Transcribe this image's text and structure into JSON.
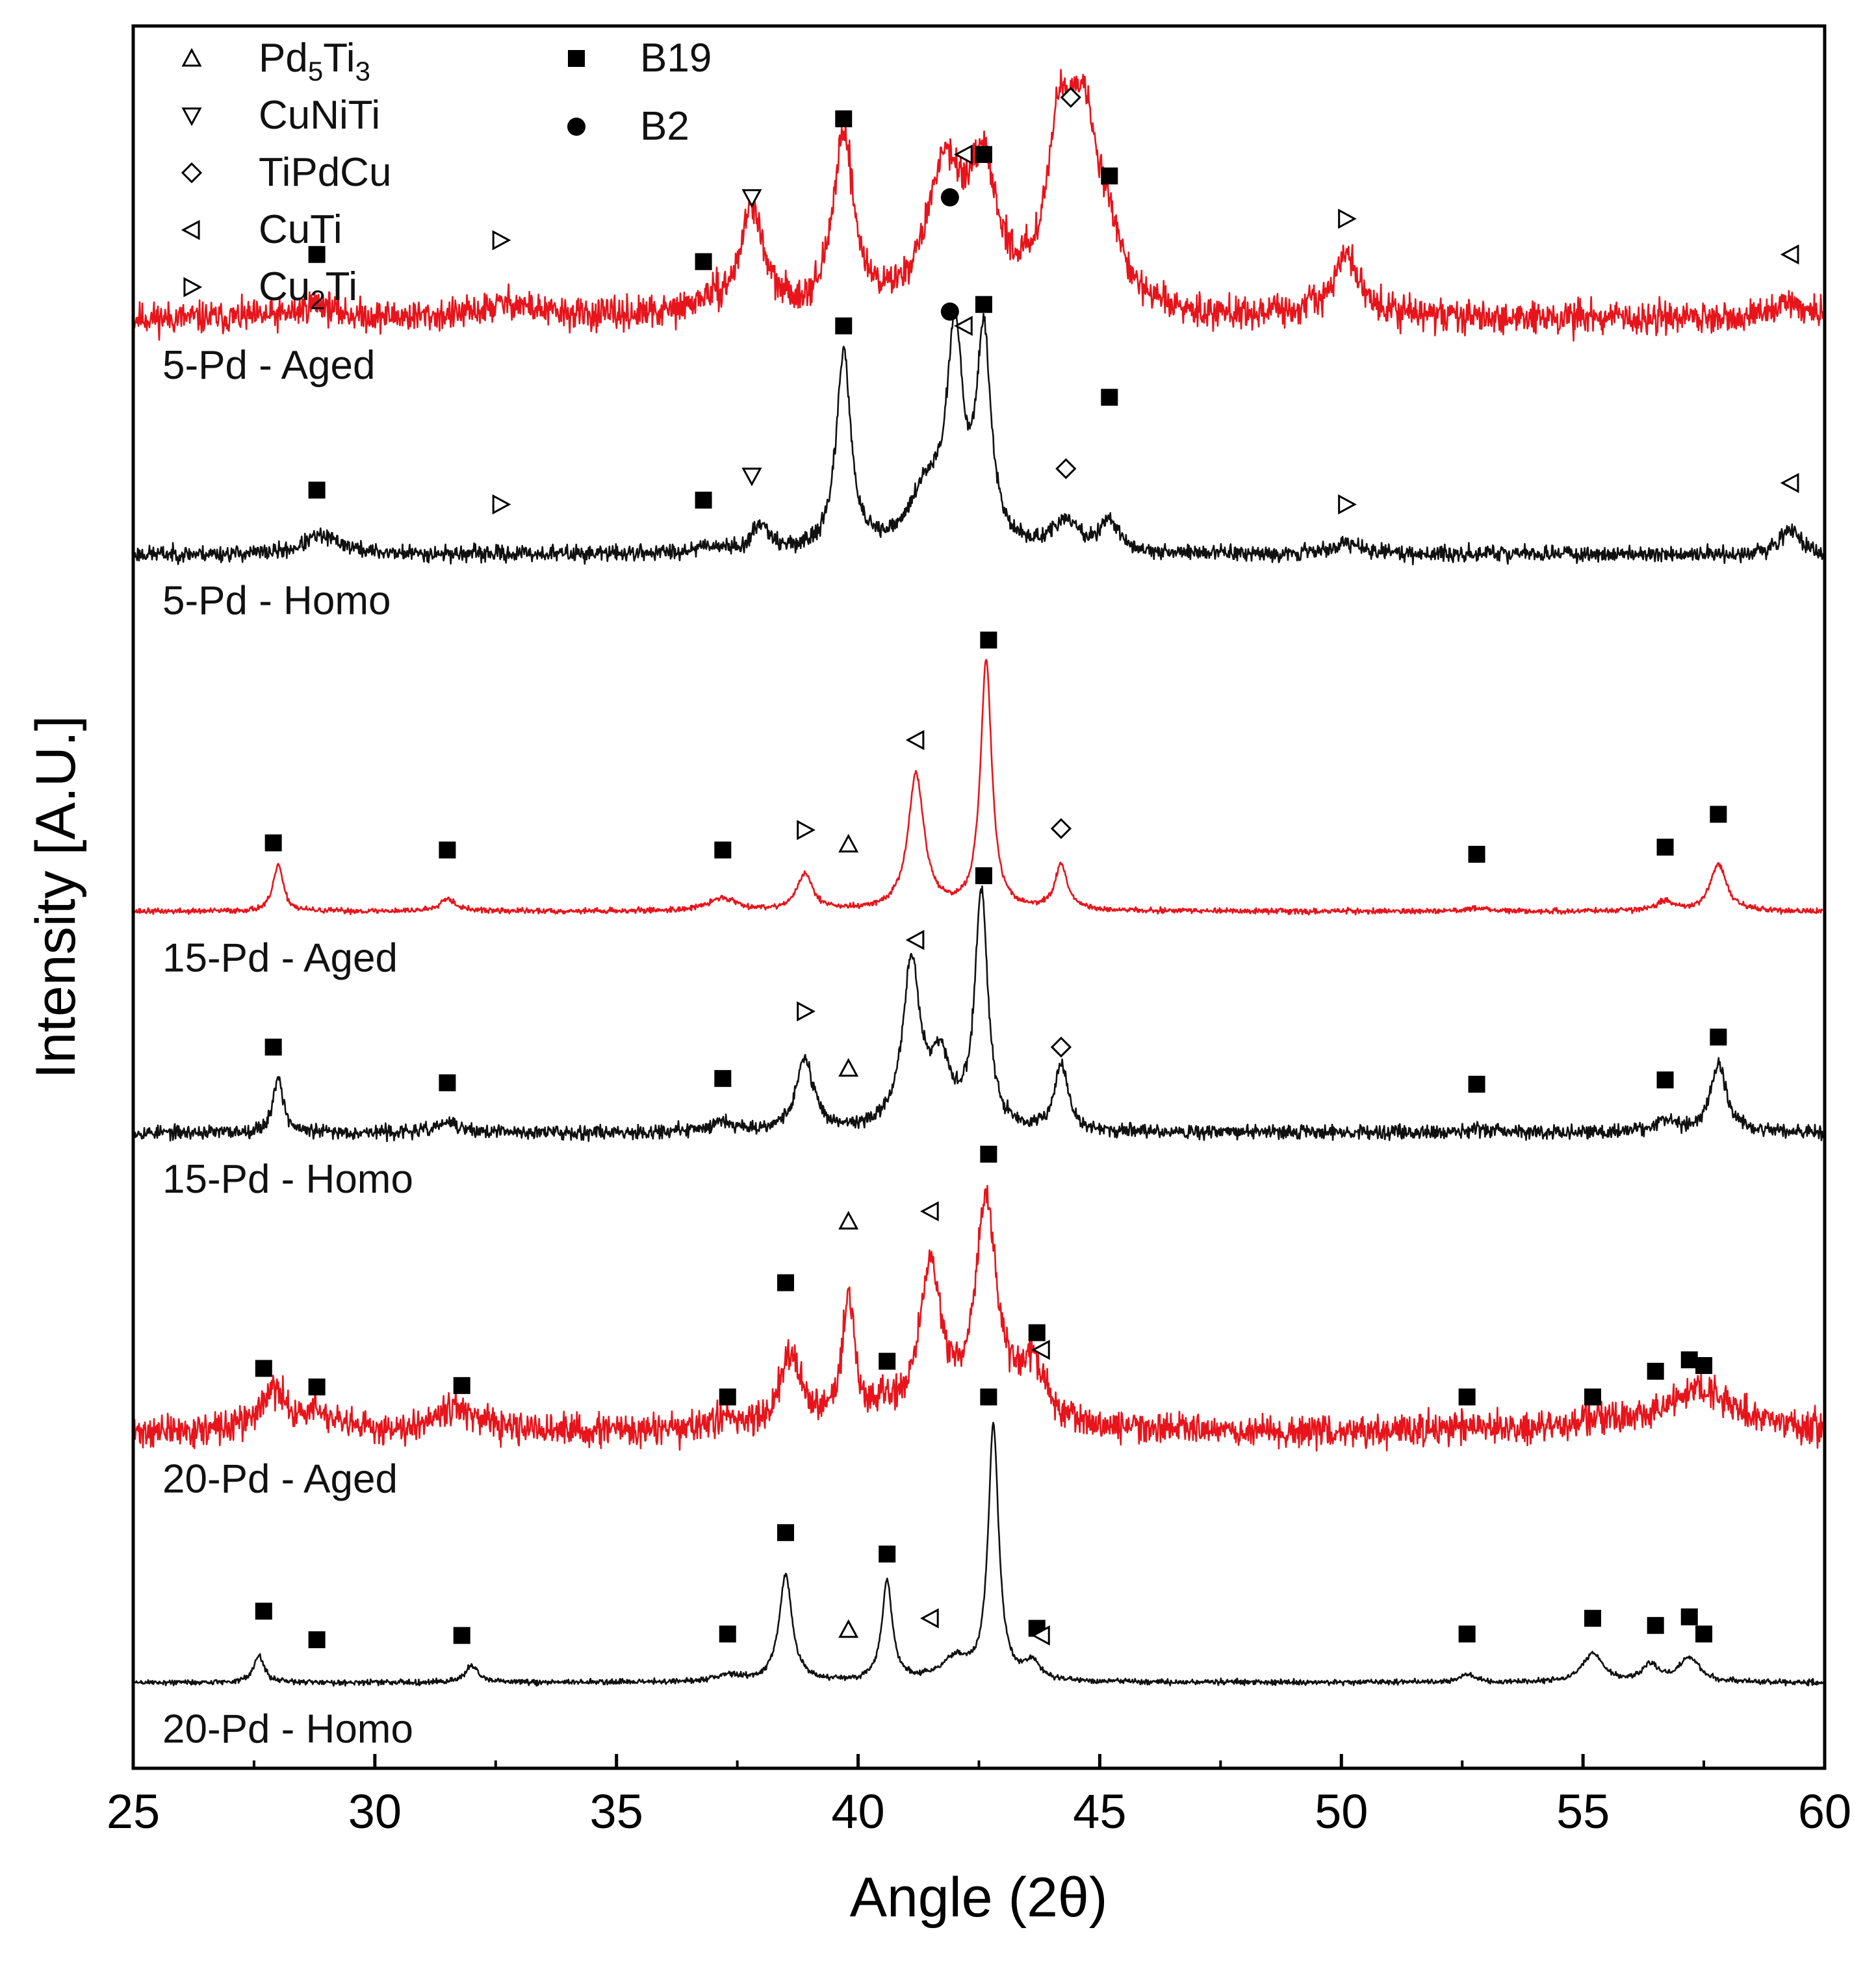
{
  "chart_data": {
    "type": "line",
    "title": "",
    "xlabel": "Angle (2θ)",
    "ylabel": "Intensity [A.U.]",
    "xlim": [
      25,
      60
    ],
    "xticks": [
      "25",
      "30",
      "35",
      "40",
      "45",
      "50",
      "55",
      "60"
    ],
    "ylim": [
      0,
      12.2
    ],
    "legend": {
      "placement": "top-left",
      "entries": [
        {
          "symbol": "triangle-up",
          "label": "Pd",
          "sub1": "5",
          "mid": "Ti",
          "sub2": "3"
        },
        {
          "symbol": "triangle-down",
          "label": "CuNiTi",
          "sub1": "",
          "mid": "",
          "sub2": ""
        },
        {
          "symbol": "diamond",
          "label": "TiPdCu",
          "sub1": "",
          "mid": "",
          "sub2": ""
        },
        {
          "symbol": "triangle-left",
          "label": "CuTi",
          "sub1": "",
          "mid": "",
          "sub2": ""
        },
        {
          "symbol": "triangle-right",
          "label": "Cu",
          "sub1": "2",
          "mid": "Ti",
          "sub2": ""
        },
        {
          "symbol": "square",
          "label": "B19",
          "sub1": "",
          "mid": "",
          "sub2": ""
        },
        {
          "symbol": "circle",
          "label": "B2",
          "sub1": "",
          "mid": "",
          "sub2": ""
        }
      ]
    },
    "series": [
      {
        "name": "5-Pd - Aged",
        "color": "#e8141b",
        "baseline": 10.15,
        "noise": 0.07,
        "seed": 11,
        "peaks": [
          [
            28.8,
            0.1,
            0.4
          ],
          [
            32.8,
            0.1,
            0.6
          ],
          [
            36.9,
            0.08,
            0.4
          ],
          [
            37.8,
            0.75,
            0.28
          ],
          [
            39.7,
            1.25,
            0.25
          ],
          [
            41.8,
            1.0,
            0.45
          ],
          [
            42.6,
            0.85,
            0.35
          ],
          [
            44.2,
            1.2,
            0.35
          ],
          [
            44.7,
            1.05,
            0.35
          ],
          [
            45.2,
            0.35,
            0.3
          ],
          [
            50.1,
            0.42,
            0.35
          ],
          [
            59.3,
            0.1,
            0.4
          ]
        ],
        "markers": [
          {
            "symbol": "square",
            "x": 28.8,
            "y": 10.6
          },
          {
            "symbol": "triangle-right",
            "x": 32.6,
            "y": 10.7
          },
          {
            "symbol": "square",
            "x": 36.8,
            "y": 10.55
          },
          {
            "symbol": "triangle-down",
            "x": 37.8,
            "y": 11.0
          },
          {
            "symbol": "square",
            "x": 39.7,
            "y": 11.55
          },
          {
            "symbol": "circle",
            "x": 41.9,
            "y": 11.0
          },
          {
            "symbol": "triangle-left",
            "x": 42.2,
            "y": 11.3
          },
          {
            "symbol": "square",
            "x": 42.6,
            "y": 11.3
          },
          {
            "symbol": "diamond",
            "x": 44.4,
            "y": 11.7
          },
          {
            "symbol": "square",
            "x": 45.2,
            "y": 11.15
          },
          {
            "symbol": "triangle-right",
            "x": 50.1,
            "y": 10.85
          },
          {
            "symbol": "triangle-left",
            "x": 59.3,
            "y": 10.6
          }
        ]
      },
      {
        "name": "5-Pd - Homo",
        "color": "#111111",
        "baseline": 8.5,
        "noise": 0.035,
        "seed": 23,
        "peaks": [
          [
            28.8,
            0.1,
            0.35
          ],
          [
            29.2,
            0.05,
            0.4
          ],
          [
            36.9,
            0.05,
            0.35
          ],
          [
            38.0,
            0.2,
            0.2
          ],
          [
            39.7,
            1.4,
            0.18
          ],
          [
            41.4,
            0.4,
            0.4
          ],
          [
            42.0,
            1.45,
            0.2
          ],
          [
            42.6,
            1.45,
            0.18
          ],
          [
            44.3,
            0.2,
            0.35
          ],
          [
            45.2,
            0.22,
            0.2
          ],
          [
            50.1,
            0.07,
            0.4
          ],
          [
            59.3,
            0.18,
            0.25
          ]
        ],
        "markers": [
          {
            "symbol": "square",
            "x": 28.8,
            "y": 8.95
          },
          {
            "symbol": "triangle-right",
            "x": 32.6,
            "y": 8.85
          },
          {
            "symbol": "square",
            "x": 36.8,
            "y": 8.88
          },
          {
            "symbol": "triangle-down",
            "x": 37.8,
            "y": 9.05
          },
          {
            "symbol": "square",
            "x": 39.7,
            "y": 10.1
          },
          {
            "symbol": "circle",
            "x": 41.9,
            "y": 10.2
          },
          {
            "symbol": "triangle-left",
            "x": 42.2,
            "y": 10.1
          },
          {
            "symbol": "square",
            "x": 42.6,
            "y": 10.25
          },
          {
            "symbol": "square",
            "x": 45.2,
            "y": 9.6
          },
          {
            "symbol": "diamond",
            "x": 44.3,
            "y": 9.1
          },
          {
            "symbol": "triangle-right",
            "x": 50.1,
            "y": 8.85
          },
          {
            "symbol": "triangle-left",
            "x": 59.3,
            "y": 9.0
          }
        ]
      },
      {
        "name": "15-Pd - Aged",
        "color": "#e8141b",
        "baseline": 6.0,
        "noise": 0.012,
        "seed": 37,
        "peaks": [
          [
            28.0,
            0.33,
            0.12
          ],
          [
            31.5,
            0.09,
            0.2
          ],
          [
            37.2,
            0.09,
            0.35
          ],
          [
            38.9,
            0.25,
            0.2
          ],
          [
            41.2,
            0.95,
            0.2
          ],
          [
            42.65,
            1.75,
            0.14
          ],
          [
            44.2,
            0.32,
            0.15
          ],
          [
            52.8,
            0.02,
            0.3
          ],
          [
            56.7,
            0.07,
            0.2
          ],
          [
            57.8,
            0.33,
            0.2
          ]
        ],
        "markers": [
          {
            "symbol": "square",
            "x": 27.9,
            "y": 6.48
          },
          {
            "symbol": "square",
            "x": 31.5,
            "y": 6.43
          },
          {
            "symbol": "square",
            "x": 37.2,
            "y": 6.43
          },
          {
            "symbol": "triangle-right",
            "x": 38.9,
            "y": 6.57
          },
          {
            "symbol": "triangle-up",
            "x": 39.8,
            "y": 6.47
          },
          {
            "symbol": "triangle-left",
            "x": 41.2,
            "y": 7.2
          },
          {
            "symbol": "square",
            "x": 42.7,
            "y": 7.9
          },
          {
            "symbol": "diamond",
            "x": 44.2,
            "y": 6.58
          },
          {
            "symbol": "square",
            "x": 52.8,
            "y": 6.4
          },
          {
            "symbol": "square",
            "x": 56.7,
            "y": 6.45
          },
          {
            "symbol": "square",
            "x": 57.8,
            "y": 6.68
          }
        ]
      },
      {
        "name": "15-Pd - Homo",
        "color": "#111111",
        "baseline": 4.45,
        "noise": 0.03,
        "seed": 53,
        "peaks": [
          [
            28.0,
            0.4,
            0.12
          ],
          [
            31.5,
            0.07,
            0.25
          ],
          [
            37.2,
            0.07,
            0.3
          ],
          [
            38.9,
            0.5,
            0.22
          ],
          [
            41.1,
            1.15,
            0.22
          ],
          [
            41.7,
            0.45,
            0.25
          ],
          [
            42.55,
            1.65,
            0.16
          ],
          [
            44.2,
            0.48,
            0.16
          ],
          [
            52.8,
            0.03,
            0.3
          ],
          [
            56.7,
            0.08,
            0.25
          ],
          [
            57.8,
            0.48,
            0.2
          ]
        ],
        "markers": [
          {
            "symbol": "square",
            "x": 27.9,
            "y": 5.05
          },
          {
            "symbol": "square",
            "x": 31.5,
            "y": 4.8
          },
          {
            "symbol": "square",
            "x": 37.2,
            "y": 4.83
          },
          {
            "symbol": "triangle-right",
            "x": 38.9,
            "y": 5.3
          },
          {
            "symbol": "triangle-up",
            "x": 39.8,
            "y": 4.9
          },
          {
            "symbol": "triangle-left",
            "x": 41.2,
            "y": 5.8
          },
          {
            "symbol": "square",
            "x": 42.6,
            "y": 6.25
          },
          {
            "symbol": "diamond",
            "x": 44.2,
            "y": 5.05
          },
          {
            "symbol": "square",
            "x": 52.8,
            "y": 4.79
          },
          {
            "symbol": "square",
            "x": 56.7,
            "y": 4.82
          },
          {
            "symbol": "square",
            "x": 57.8,
            "y": 5.12
          }
        ]
      },
      {
        "name": "20-Pd - Aged",
        "color": "#e8141b",
        "baseline": 2.35,
        "noise": 0.07,
        "seed": 71,
        "peaks": [
          [
            27.9,
            0.28,
            0.35
          ],
          [
            28.8,
            0.12,
            0.3
          ],
          [
            31.6,
            0.18,
            0.5
          ],
          [
            37.3,
            0.08,
            0.4
          ],
          [
            38.6,
            0.55,
            0.25
          ],
          [
            39.8,
            0.9,
            0.16
          ],
          [
            40.6,
            0.12,
            0.3
          ],
          [
            41.5,
            1.1,
            0.28
          ],
          [
            42.65,
            1.55,
            0.28
          ],
          [
            43.6,
            0.4,
            0.35
          ],
          [
            52.6,
            0.04,
            0.4
          ],
          [
            55.3,
            0.05,
            0.5
          ],
          [
            57.4,
            0.3,
            0.9
          ]
        ],
        "markers": [
          {
            "symbol": "square",
            "x": 27.7,
            "y": 2.8
          },
          {
            "symbol": "square",
            "x": 28.8,
            "y": 2.67
          },
          {
            "symbol": "square",
            "x": 31.8,
            "y": 2.68
          },
          {
            "symbol": "square",
            "x": 37.3,
            "y": 2.6
          },
          {
            "symbol": "square",
            "x": 38.5,
            "y": 3.4
          },
          {
            "symbol": "triangle-up",
            "x": 39.8,
            "y": 3.83
          },
          {
            "symbol": "square",
            "x": 40.6,
            "y": 2.85
          },
          {
            "symbol": "triangle-left",
            "x": 41.5,
            "y": 3.9
          },
          {
            "symbol": "square",
            "x": 42.7,
            "y": 4.3
          },
          {
            "symbol": "square",
            "x": 43.7,
            "y": 3.05
          },
          {
            "symbol": "triangle-left",
            "x": 43.8,
            "y": 2.93
          },
          {
            "symbol": "square",
            "x": 52.6,
            "y": 2.6
          },
          {
            "symbol": "square",
            "x": 55.2,
            "y": 2.6
          },
          {
            "symbol": "square",
            "x": 56.5,
            "y": 2.78
          },
          {
            "symbol": "square",
            "x": 57.2,
            "y": 2.86
          },
          {
            "symbol": "square",
            "x": 57.5,
            "y": 2.82
          }
        ]
      },
      {
        "name": "20-Pd - Homo",
        "color": "#111111",
        "baseline": 0.6,
        "noise": 0.012,
        "seed": 89,
        "peaks": [
          [
            27.6,
            0.2,
            0.12
          ],
          [
            32.0,
            0.12,
            0.15
          ],
          [
            37.3,
            0.05,
            0.3
          ],
          [
            38.5,
            0.75,
            0.16
          ],
          [
            40.6,
            0.7,
            0.13
          ],
          [
            42.0,
            0.15,
            0.35
          ],
          [
            42.8,
            1.78,
            0.13
          ],
          [
            43.6,
            0.12,
            0.2
          ],
          [
            52.6,
            0.06,
            0.15
          ],
          [
            55.2,
            0.2,
            0.25
          ],
          [
            56.4,
            0.12,
            0.2
          ],
          [
            57.2,
            0.17,
            0.25
          ]
        ],
        "markers": [
          {
            "symbol": "square",
            "x": 27.7,
            "y": 1.1
          },
          {
            "symbol": "square",
            "x": 28.8,
            "y": 0.9
          },
          {
            "symbol": "square",
            "x": 31.8,
            "y": 0.93
          },
          {
            "symbol": "square",
            "x": 37.3,
            "y": 0.94
          },
          {
            "symbol": "square",
            "x": 38.5,
            "y": 1.65
          },
          {
            "symbol": "triangle-up",
            "x": 39.8,
            "y": 0.97
          },
          {
            "symbol": "square",
            "x": 40.6,
            "y": 1.5
          },
          {
            "symbol": "triangle-left",
            "x": 41.5,
            "y": 1.05
          },
          {
            "symbol": "square",
            "x": 42.7,
            "y": 2.6
          },
          {
            "symbol": "square",
            "x": 43.7,
            "y": 0.98
          },
          {
            "symbol": "triangle-left",
            "x": 43.8,
            "y": 0.93
          },
          {
            "symbol": "square",
            "x": 52.6,
            "y": 0.94
          },
          {
            "symbol": "square",
            "x": 55.2,
            "y": 1.05
          },
          {
            "symbol": "square",
            "x": 56.5,
            "y": 1.0
          },
          {
            "symbol": "square",
            "x": 57.2,
            "y": 1.06
          },
          {
            "symbol": "square",
            "x": 57.5,
            "y": 0.94
          }
        ]
      }
    ]
  }
}
